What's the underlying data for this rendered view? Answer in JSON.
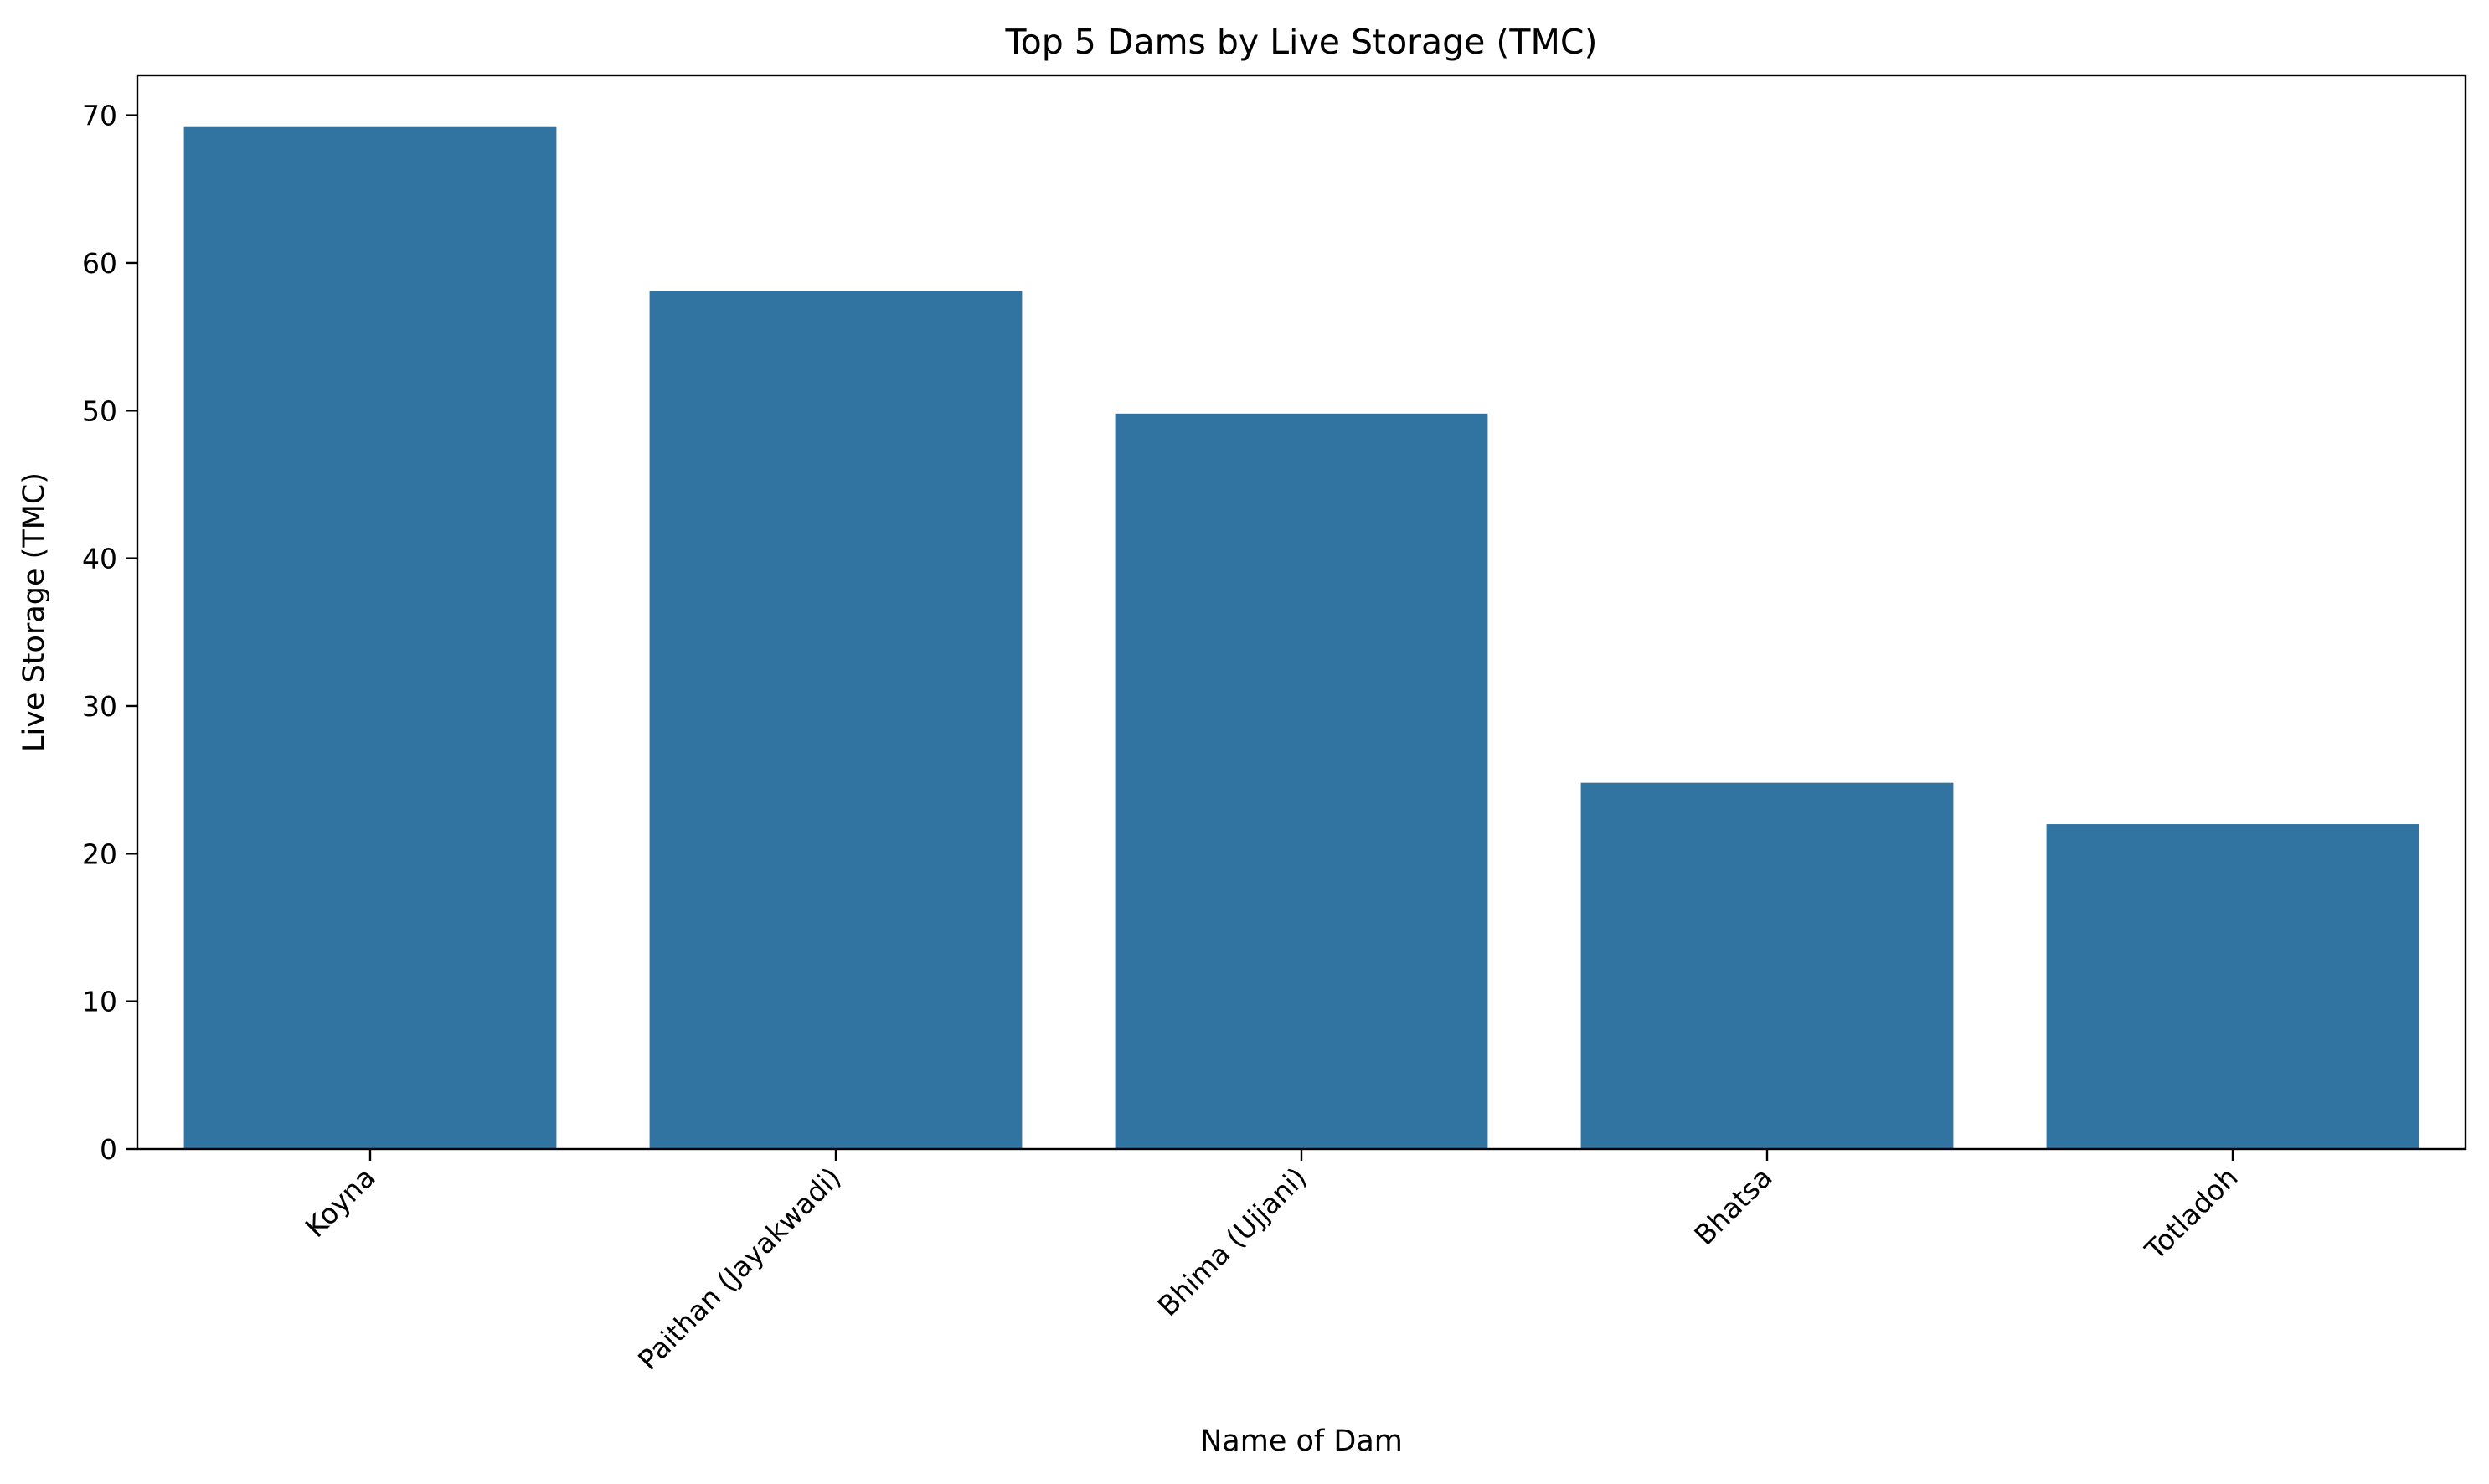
{
  "chart_data": {
    "type": "bar",
    "title": "Top 5 Dams by Live Storage (TMC)",
    "xlabel": "Name of Dam",
    "ylabel": "Live Storage (TMC)",
    "categories": [
      "Koyna",
      "Paithan (Jayakwadi)",
      "Bhima (Ujjani)",
      "Bhatsa",
      "Totladoh"
    ],
    "values": [
      69.2,
      58.1,
      49.8,
      24.8,
      22.0
    ],
    "ylim": [
      0,
      72.7
    ],
    "yticks": [
      0,
      10,
      20,
      30,
      40,
      50,
      60,
      70
    ],
    "grid": false,
    "legend": "none",
    "bar_color": "#3274a1"
  }
}
